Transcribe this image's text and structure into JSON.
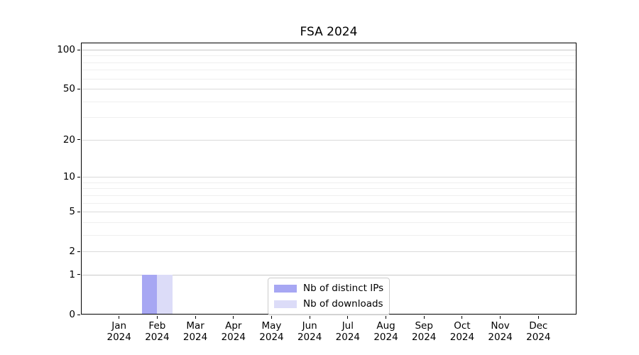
{
  "chart_data": {
    "type": "bar",
    "title": "FSA 2024",
    "categories": [
      "Jan 2024",
      "Feb 2024",
      "Mar 2024",
      "Apr 2024",
      "May 2024",
      "Jun 2024",
      "Jul 2024",
      "Aug 2024",
      "Sep 2024",
      "Oct 2024",
      "Nov 2024",
      "Dec 2024"
    ],
    "series": [
      {
        "name": "Nb of distinct IPs",
        "color": "#a7a7f3",
        "values": [
          0,
          1,
          0,
          0,
          0,
          0,
          0,
          0,
          0,
          0,
          0,
          0
        ]
      },
      {
        "name": "Nb of downloads",
        "color": "#dcdcf8",
        "values": [
          0,
          1,
          0,
          0,
          0,
          0,
          0,
          0,
          0,
          0,
          0,
          0
        ]
      }
    ],
    "y_axis": {
      "scale": "log1p",
      "ticks": [
        0,
        1,
        2,
        5,
        10,
        20,
        50,
        100
      ],
      "tick_labels": [
        "0",
        "1",
        "2",
        "5",
        "10",
        "20",
        "50",
        "100"
      ],
      "minor_ticks": [
        3,
        4,
        6,
        7,
        8,
        9,
        30,
        40,
        60,
        70,
        80,
        90
      ],
      "ylim": [
        0,
        113
      ]
    },
    "x_axis": {
      "tick_labels_line2": "2024"
    },
    "grid": {
      "major_color": "#dadada",
      "emphasis_color": "#c8c8c8",
      "minor_color": "#efefef"
    },
    "legend": {
      "position": "lower center"
    }
  }
}
